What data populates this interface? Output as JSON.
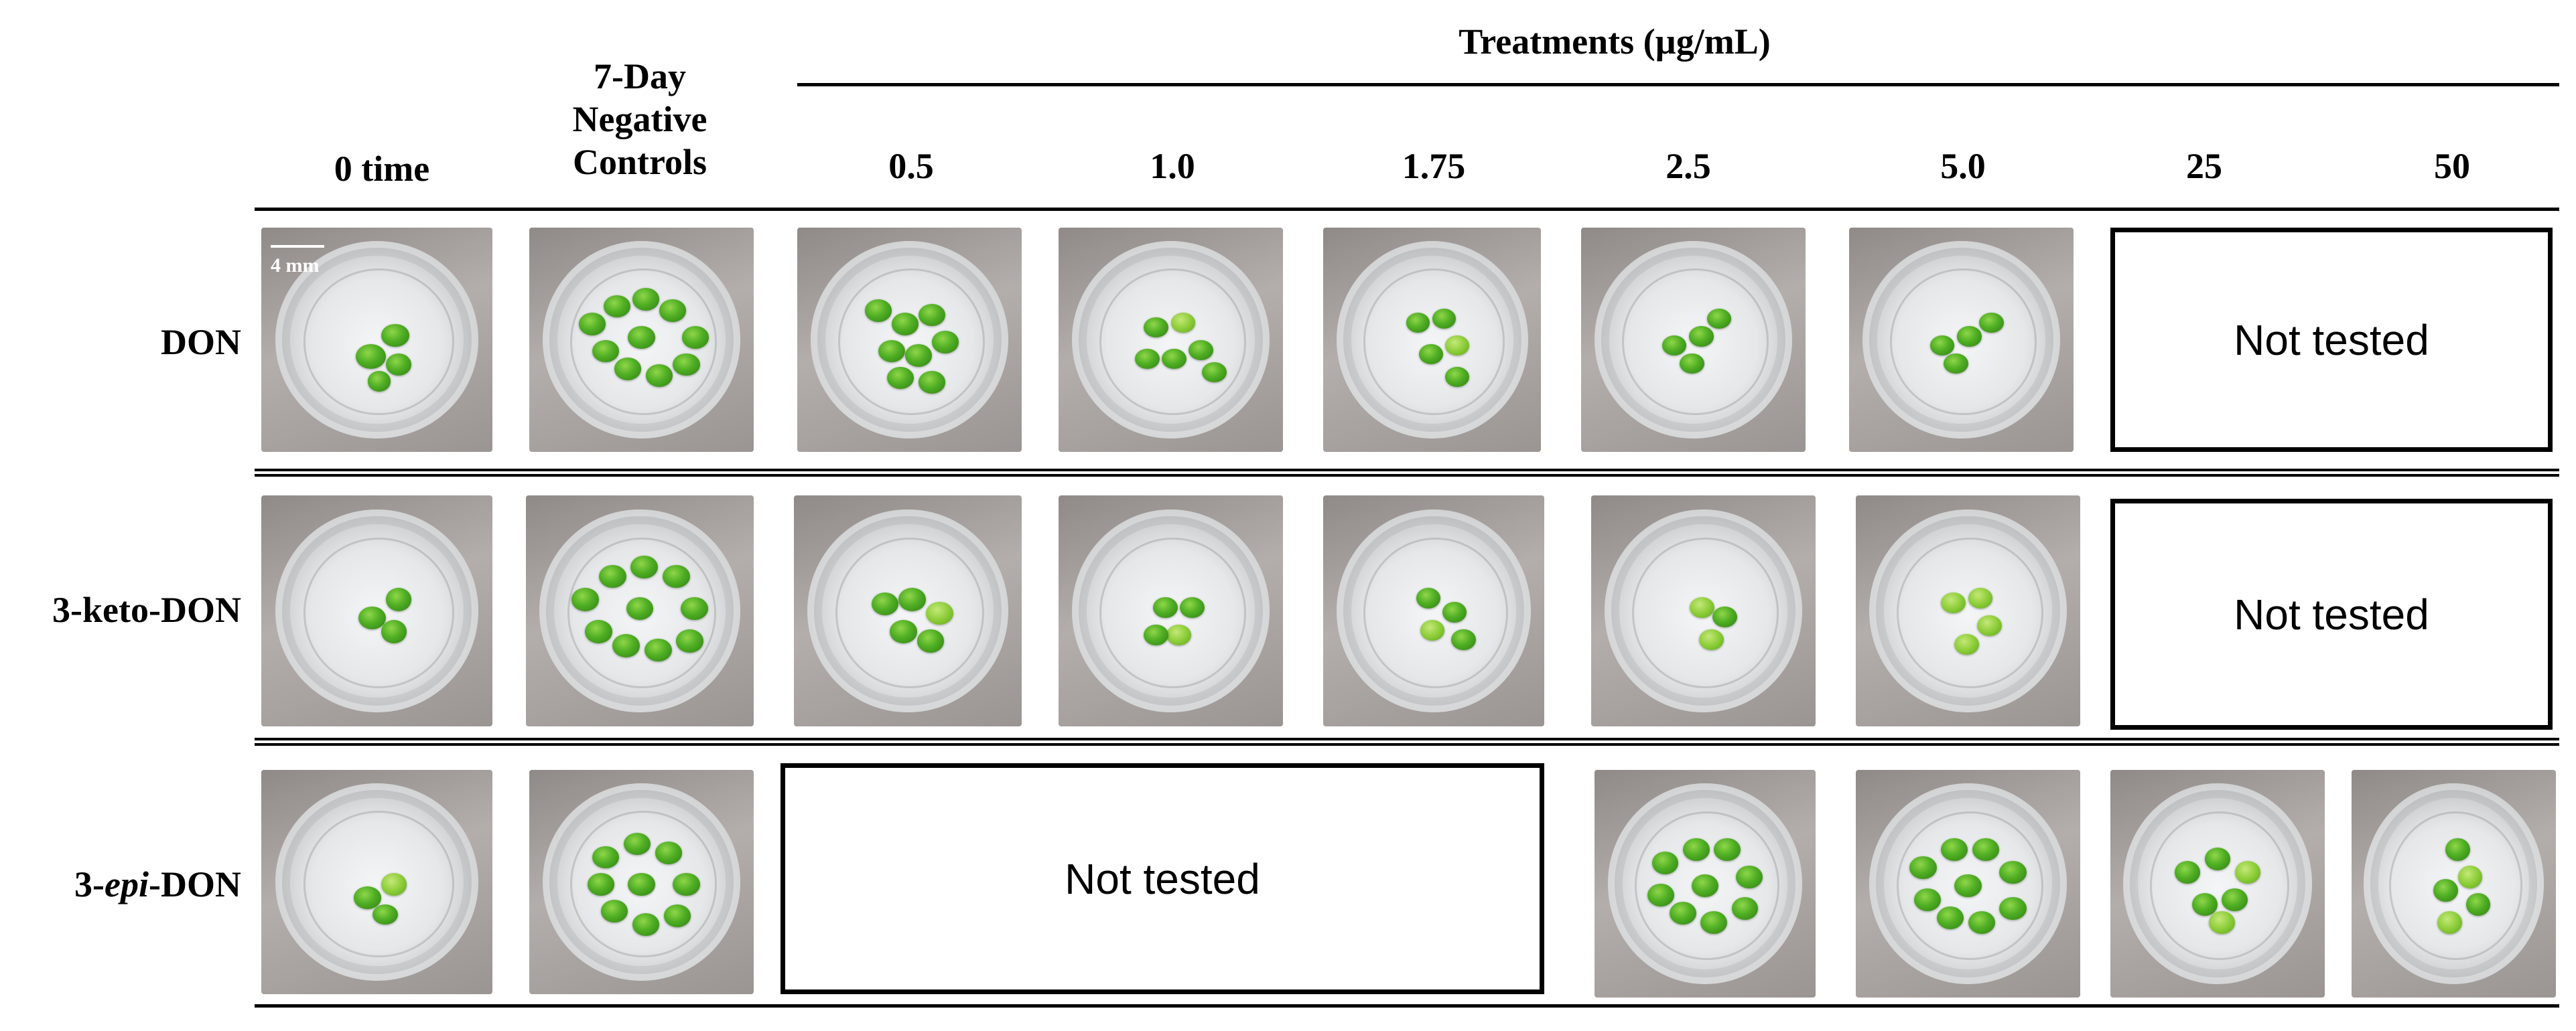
{
  "header": {
    "treatments_title": "Treatments (µg/mL)",
    "col_zero": "0 time",
    "col_neg_line1": "7-Day",
    "col_neg_line2": "Negative",
    "col_neg_line3": "Controls",
    "concentrations": [
      "0.5",
      "1.0",
      "1.75",
      "2.5",
      "5.0",
      "25",
      "50"
    ]
  },
  "rows": [
    {
      "label": "DON",
      "not_tested_label": "Not tested"
    },
    {
      "label": "3-keto-DON",
      "not_tested_label": "Not tested"
    },
    {
      "label_prefix": "3-",
      "label_italic": "epi",
      "label_suffix": "-DON",
      "not_tested_label": "Not tested"
    }
  ],
  "scale_bar": "4 mm",
  "colors": {
    "frond_green": "#4fae23",
    "frond_pale": "#8ccd38",
    "rule": "#000000"
  }
}
